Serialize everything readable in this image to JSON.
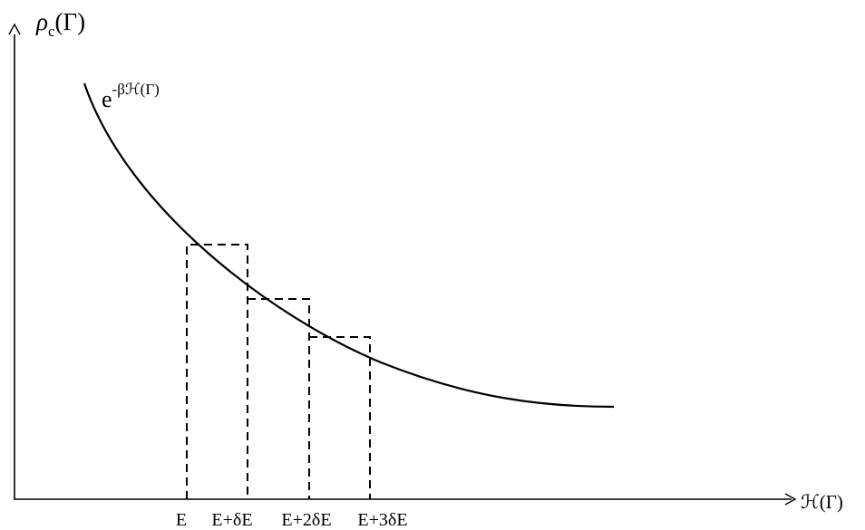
{
  "y_axis_label": {
    "main": "ρ",
    "subscript": "c",
    "argument": "(Γ)"
  },
  "x_axis_label": "ℋ(Γ)",
  "curve_label": {
    "base": "e",
    "exponent": "-βℋ(Γ)"
  },
  "tick_labels": [
    "E",
    "E+δE",
    "E+2δE",
    "E+3δE"
  ]
}
